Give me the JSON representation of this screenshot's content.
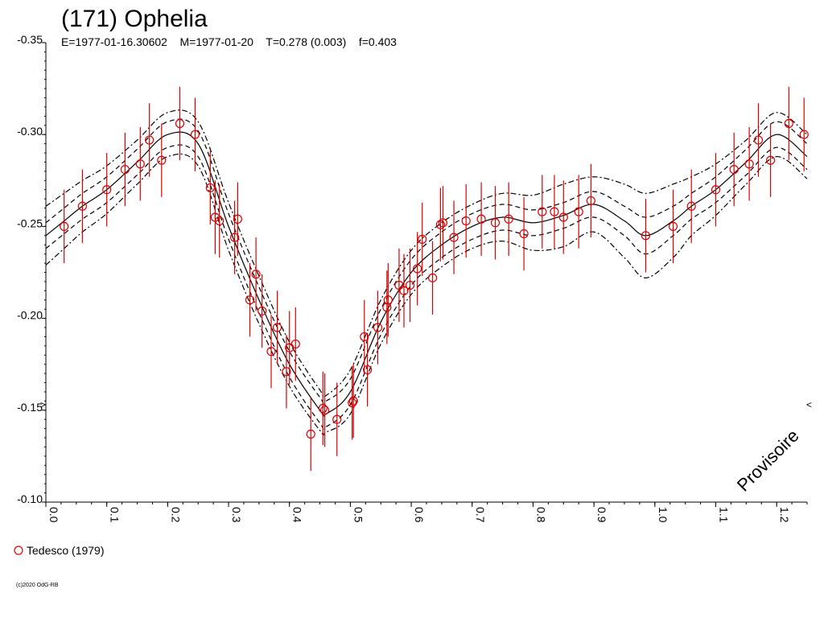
{
  "header": {
    "title": "(171) Ophelia",
    "subtitle": "E=1977-01-16.30602    M=1977-01-20    T=0.278 (0.003)    f=0.403"
  },
  "watermark": "Provisoire",
  "copyright": "(c)2020 OdG-RB",
  "colors": {
    "fit": "#000000",
    "points": "#dd0000",
    "errorbars": "#dd0000",
    "axis": "#000000"
  },
  "chart_data": {
    "type": "scatter",
    "title": "(171) Ophelia",
    "xlabel": "",
    "ylabel": "",
    "xlim": [
      0.0,
      1.25
    ],
    "ylim": [
      -0.35,
      -0.1
    ],
    "y_inverted": true,
    "x_ticks": [
      "0.0",
      "0.1",
      "0.2",
      "0.3",
      "0.4",
      "0.5",
      "0.6",
      "0.7",
      "0.8",
      "0.9",
      "1.0",
      "1.1",
      "1.2"
    ],
    "y_ticks": [
      "-0.35",
      "-0.30",
      "-0.25",
      "-0.20",
      "-0.15",
      "-0.10"
    ],
    "grid": false,
    "legend_position": "bottom-left",
    "series": [
      {
        "name": "Tedesco (1979)",
        "kind": "points",
        "points": [
          [
            0.03,
            -0.25,
            0.02
          ],
          [
            0.06,
            -0.261,
            0.02
          ],
          [
            0.1,
            -0.27,
            0.02
          ],
          [
            0.13,
            -0.281,
            0.02
          ],
          [
            0.155,
            -0.284,
            0.02
          ],
          [
            0.17,
            -0.297,
            0.02
          ],
          [
            0.19,
            -0.286,
            0.02
          ],
          [
            0.22,
            -0.306,
            0.02
          ],
          [
            0.245,
            -0.3,
            0.02
          ],
          [
            0.27,
            -0.271,
            0.02
          ],
          [
            0.278,
            -0.255,
            0.02
          ],
          [
            0.285,
            -0.253,
            0.02
          ],
          [
            0.31,
            -0.244,
            0.02
          ],
          [
            0.315,
            -0.254,
            0.02
          ],
          [
            0.335,
            -0.21,
            0.02
          ],
          [
            0.345,
            -0.224,
            0.02
          ],
          [
            0.355,
            -0.204,
            0.02
          ],
          [
            0.37,
            -0.182,
            0.02
          ],
          [
            0.38,
            -0.195,
            0.02
          ],
          [
            0.395,
            -0.171,
            0.02
          ],
          [
            0.4,
            -0.184,
            0.02
          ],
          [
            0.41,
            -0.186,
            0.02
          ],
          [
            0.435,
            -0.137,
            0.02
          ],
          [
            0.455,
            -0.151,
            0.02
          ],
          [
            0.458,
            -0.15,
            0.02
          ],
          [
            0.478,
            -0.145,
            0.02
          ],
          [
            0.503,
            -0.154,
            0.02
          ],
          [
            0.505,
            -0.155,
            0.02
          ],
          [
            0.523,
            -0.19,
            0.02
          ],
          [
            0.528,
            -0.172,
            0.02
          ],
          [
            0.545,
            -0.195,
            0.02
          ],
          [
            0.56,
            -0.206,
            0.02
          ],
          [
            0.562,
            -0.21,
            0.02
          ],
          [
            0.58,
            -0.218,
            0.02
          ],
          [
            0.588,
            -0.215,
            0.02
          ],
          [
            0.598,
            -0.218,
            0.02
          ],
          [
            0.61,
            -0.227,
            0.02
          ],
          [
            0.618,
            -0.243,
            0.02
          ],
          [
            0.635,
            -0.222,
            0.02
          ],
          [
            0.648,
            -0.251,
            0.02
          ],
          [
            0.652,
            -0.252,
            0.02
          ],
          [
            0.67,
            -0.244,
            0.02
          ],
          [
            0.69,
            -0.253,
            0.02
          ],
          [
            0.715,
            -0.254,
            0.02
          ],
          [
            0.738,
            -0.252,
            0.02
          ],
          [
            0.76,
            -0.254,
            0.02
          ],
          [
            0.785,
            -0.246,
            0.02
          ],
          [
            0.815,
            -0.258,
            0.02
          ],
          [
            0.835,
            -0.258,
            0.02
          ],
          [
            0.85,
            -0.255,
            0.02
          ],
          [
            0.875,
            -0.258,
            0.02
          ],
          [
            0.895,
            -0.264,
            0.02
          ],
          [
            0.985,
            -0.245,
            0.02
          ],
          [
            1.03,
            -0.25,
            0.02
          ],
          [
            1.06,
            -0.261,
            0.02
          ],
          [
            1.1,
            -0.27,
            0.02
          ],
          [
            1.13,
            -0.281,
            0.02
          ],
          [
            1.155,
            -0.284,
            0.02
          ],
          [
            1.17,
            -0.297,
            0.02
          ],
          [
            1.19,
            -0.286,
            0.02
          ],
          [
            1.22,
            -0.306,
            0.02
          ],
          [
            1.245,
            -0.3,
            0.02
          ]
        ]
      }
    ],
    "fit_curve": {
      "name": "fit",
      "x": [
        0.0,
        0.03,
        0.06,
        0.1,
        0.15,
        0.2,
        0.25,
        0.3,
        0.35,
        0.4,
        0.45,
        0.46,
        0.5,
        0.55,
        0.6,
        0.65,
        0.7,
        0.75,
        0.8,
        0.85,
        0.9,
        0.95,
        0.985,
        1.03,
        1.06,
        1.1,
        1.15,
        1.2,
        1.25
      ],
      "y": [
        -0.245,
        -0.253,
        -0.261,
        -0.27,
        -0.285,
        -0.3,
        -0.295,
        -0.25,
        -0.21,
        -0.175,
        -0.15,
        -0.148,
        -0.16,
        -0.198,
        -0.225,
        -0.24,
        -0.25,
        -0.255,
        -0.252,
        -0.256,
        -0.262,
        -0.253,
        -0.245,
        -0.253,
        -0.261,
        -0.27,
        -0.285,
        -0.3,
        -0.288
      ],
      "band_inner": [
        0.007,
        0.007,
        0.007,
        0.007,
        0.007,
        0.007,
        0.007,
        0.007,
        0.007,
        0.007,
        0.007,
        0.007,
        0.007,
        0.007,
        0.007,
        0.007,
        0.007,
        0.007,
        0.007,
        0.007,
        0.007,
        0.008,
        0.01,
        0.008,
        0.007,
        0.007,
        0.007,
        0.007,
        0.007
      ],
      "band_outer": [
        0.016,
        0.015,
        0.014,
        0.013,
        0.012,
        0.012,
        0.012,
        0.013,
        0.013,
        0.012,
        0.011,
        0.01,
        0.012,
        0.012,
        0.012,
        0.012,
        0.012,
        0.013,
        0.015,
        0.017,
        0.015,
        0.02,
        0.023,
        0.02,
        0.016,
        0.014,
        0.012,
        0.012,
        0.012
      ]
    }
  },
  "legend": {
    "label": "Tedesco (1979)"
  }
}
